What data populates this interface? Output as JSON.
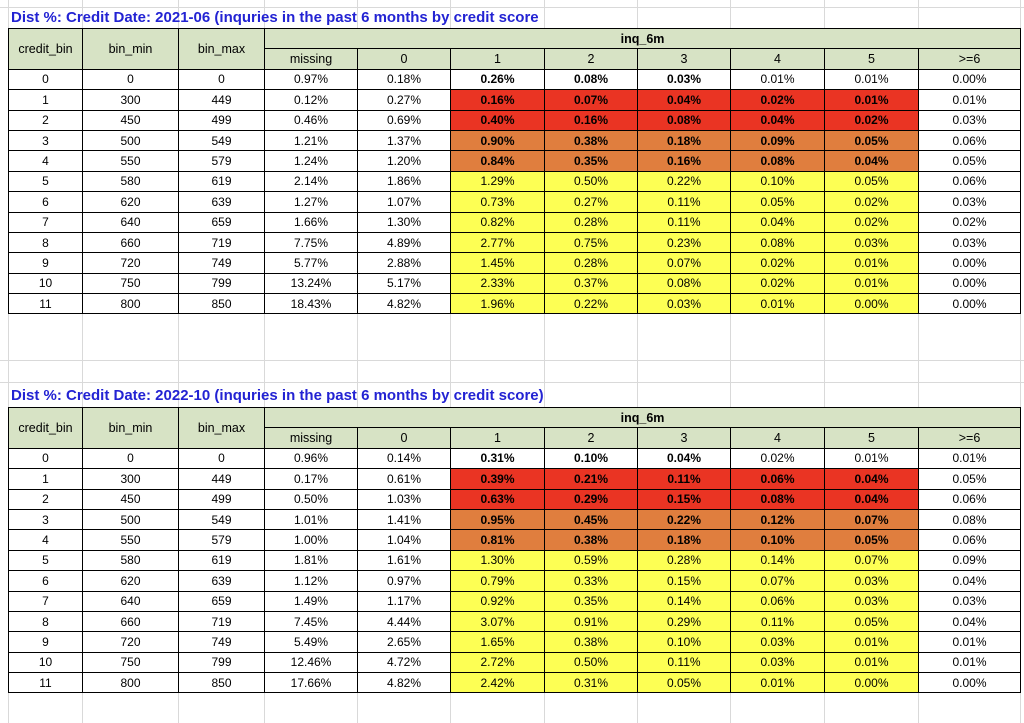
{
  "colors": {
    "band_red": "#ea3423",
    "band_orange": "#e07e3e",
    "band_yellow": "#fdff54",
    "header_green": "#d7e3c5",
    "title_blue": "#2323d3"
  },
  "sheet": {
    "tables": [
      {
        "title": "Dist %: Credit Date: 2021-06 (inquries in the past 6 months by credit score",
        "header": {
          "credit_bin": "credit_bin",
          "bin_min": "bin_min",
          "bin_max": "bin_max",
          "group": "inq_6m",
          "columns": [
            "missing",
            "0",
            "1",
            "2",
            "3",
            "4",
            "5",
            ">=6"
          ]
        },
        "rows": [
          {
            "cells": [
              "0",
              "0",
              "0",
              "0.97%",
              "0.18%",
              "0.26%",
              "0.08%",
              "0.03%",
              "0.01%",
              "0.01%",
              "0.00%"
            ],
            "band": "none",
            "bold": [
              5,
              6,
              7
            ]
          },
          {
            "cells": [
              "1",
              "300",
              "449",
              "0.12%",
              "0.27%",
              "0.16%",
              "0.07%",
              "0.04%",
              "0.02%",
              "0.01%",
              "0.01%"
            ],
            "band": "red",
            "bold": [
              5,
              6,
              7,
              8,
              9
            ]
          },
          {
            "cells": [
              "2",
              "450",
              "499",
              "0.46%",
              "0.69%",
              "0.40%",
              "0.16%",
              "0.08%",
              "0.04%",
              "0.02%",
              "0.03%"
            ],
            "band": "red",
            "bold": [
              5,
              6,
              7,
              8,
              9
            ]
          },
          {
            "cells": [
              "3",
              "500",
              "549",
              "1.21%",
              "1.37%",
              "0.90%",
              "0.38%",
              "0.18%",
              "0.09%",
              "0.05%",
              "0.06%"
            ],
            "band": "orange",
            "bold": [
              5,
              6,
              7,
              8,
              9
            ]
          },
          {
            "cells": [
              "4",
              "550",
              "579",
              "1.24%",
              "1.20%",
              "0.84%",
              "0.35%",
              "0.16%",
              "0.08%",
              "0.04%",
              "0.05%"
            ],
            "band": "orange",
            "bold": [
              5,
              6,
              7,
              8,
              9
            ]
          },
          {
            "cells": [
              "5",
              "580",
              "619",
              "2.14%",
              "1.86%",
              "1.29%",
              "0.50%",
              "0.22%",
              "0.10%",
              "0.05%",
              "0.06%"
            ],
            "band": "yellow",
            "bold": []
          },
          {
            "cells": [
              "6",
              "620",
              "639",
              "1.27%",
              "1.07%",
              "0.73%",
              "0.27%",
              "0.11%",
              "0.05%",
              "0.02%",
              "0.03%"
            ],
            "band": "yellow",
            "bold": []
          },
          {
            "cells": [
              "7",
              "640",
              "659",
              "1.66%",
              "1.30%",
              "0.82%",
              "0.28%",
              "0.11%",
              "0.04%",
              "0.02%",
              "0.02%"
            ],
            "band": "yellow",
            "bold": []
          },
          {
            "cells": [
              "8",
              "660",
              "719",
              "7.75%",
              "4.89%",
              "2.77%",
              "0.75%",
              "0.23%",
              "0.08%",
              "0.03%",
              "0.03%"
            ],
            "band": "yellow",
            "bold": []
          },
          {
            "cells": [
              "9",
              "720",
              "749",
              "5.77%",
              "2.88%",
              "1.45%",
              "0.28%",
              "0.07%",
              "0.02%",
              "0.01%",
              "0.00%"
            ],
            "band": "yellow",
            "bold": []
          },
          {
            "cells": [
              "10",
              "750",
              "799",
              "13.24%",
              "5.17%",
              "2.33%",
              "0.37%",
              "0.08%",
              "0.02%",
              "0.01%",
              "0.00%"
            ],
            "band": "yellow",
            "bold": []
          },
          {
            "cells": [
              "11",
              "800",
              "850",
              "18.43%",
              "4.82%",
              "1.96%",
              "0.22%",
              "0.03%",
              "0.01%",
              "0.00%",
              "0.00%"
            ],
            "band": "yellow",
            "bold": []
          }
        ]
      },
      {
        "title": "Dist %: Credit Date: 2022-10 (inquries in the past 6 months by credit score)",
        "header": {
          "credit_bin": "credit_bin",
          "bin_min": "bin_min",
          "bin_max": "bin_max",
          "group": "inq_6m",
          "columns": [
            "missing",
            "0",
            "1",
            "2",
            "3",
            "4",
            "5",
            ">=6"
          ]
        },
        "rows": [
          {
            "cells": [
              "0",
              "0",
              "0",
              "0.96%",
              "0.14%",
              "0.31%",
              "0.10%",
              "0.04%",
              "0.02%",
              "0.01%",
              "0.01%"
            ],
            "band": "none",
            "bold": [
              5,
              6,
              7
            ]
          },
          {
            "cells": [
              "1",
              "300",
              "449",
              "0.17%",
              "0.61%",
              "0.39%",
              "0.21%",
              "0.11%",
              "0.06%",
              "0.04%",
              "0.05%"
            ],
            "band": "red",
            "bold": [
              5,
              6,
              7,
              8,
              9
            ]
          },
          {
            "cells": [
              "2",
              "450",
              "499",
              "0.50%",
              "1.03%",
              "0.63%",
              "0.29%",
              "0.15%",
              "0.08%",
              "0.04%",
              "0.06%"
            ],
            "band": "red",
            "bold": [
              5,
              6,
              7,
              8,
              9
            ]
          },
          {
            "cells": [
              "3",
              "500",
              "549",
              "1.01%",
              "1.41%",
              "0.95%",
              "0.45%",
              "0.22%",
              "0.12%",
              "0.07%",
              "0.08%"
            ],
            "band": "orange",
            "bold": [
              5,
              6,
              7,
              8,
              9
            ]
          },
          {
            "cells": [
              "4",
              "550",
              "579",
              "1.00%",
              "1.04%",
              "0.81%",
              "0.38%",
              "0.18%",
              "0.10%",
              "0.05%",
              "0.06%"
            ],
            "band": "orange",
            "bold": [
              5,
              6,
              7,
              8,
              9
            ]
          },
          {
            "cells": [
              "5",
              "580",
              "619",
              "1.81%",
              "1.61%",
              "1.30%",
              "0.59%",
              "0.28%",
              "0.14%",
              "0.07%",
              "0.09%"
            ],
            "band": "yellow",
            "bold": []
          },
          {
            "cells": [
              "6",
              "620",
              "639",
              "1.12%",
              "0.97%",
              "0.79%",
              "0.33%",
              "0.15%",
              "0.07%",
              "0.03%",
              "0.04%"
            ],
            "band": "yellow",
            "bold": []
          },
          {
            "cells": [
              "7",
              "640",
              "659",
              "1.49%",
              "1.17%",
              "0.92%",
              "0.35%",
              "0.14%",
              "0.06%",
              "0.03%",
              "0.03%"
            ],
            "band": "yellow",
            "bold": []
          },
          {
            "cells": [
              "8",
              "660",
              "719",
              "7.45%",
              "4.44%",
              "3.07%",
              "0.91%",
              "0.29%",
              "0.11%",
              "0.05%",
              "0.04%"
            ],
            "band": "yellow",
            "bold": []
          },
          {
            "cells": [
              "9",
              "720",
              "749",
              "5.49%",
              "2.65%",
              "1.65%",
              "0.38%",
              "0.10%",
              "0.03%",
              "0.01%",
              "0.01%"
            ],
            "band": "yellow",
            "bold": []
          },
          {
            "cells": [
              "10",
              "750",
              "799",
              "12.46%",
              "4.72%",
              "2.72%",
              "0.50%",
              "0.11%",
              "0.03%",
              "0.01%",
              "0.01%"
            ],
            "band": "yellow",
            "bold": []
          },
          {
            "cells": [
              "11",
              "800",
              "850",
              "17.66%",
              "4.82%",
              "2.42%",
              "0.31%",
              "0.05%",
              "0.01%",
              "0.00%",
              "0.00%"
            ],
            "band": "yellow",
            "bold": []
          }
        ]
      }
    ]
  }
}
